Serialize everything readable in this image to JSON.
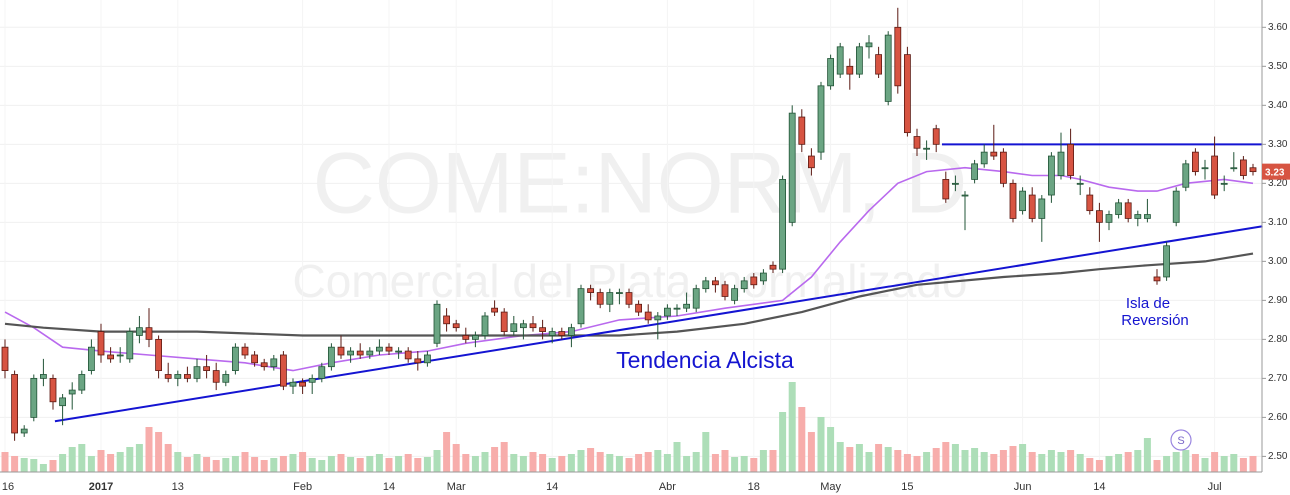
{
  "chart_data": {
    "type": "candlestick",
    "watermark": [
      "COME:NORM, D",
      "Comercial del Plata, normalizado"
    ],
    "annotations": [
      "Tendencia Alcista",
      "Isla de",
      "Reversión"
    ],
    "event_marker": "S",
    "up_color": "#6ba583",
    "down_color": "#d75442",
    "categories": [
      "16",
      null,
      null,
      null,
      null,
      null,
      null,
      null,
      null,
      null,
      "2017",
      null,
      null,
      null,
      null,
      null,
      null,
      null,
      "13",
      null,
      null,
      null,
      null,
      null,
      null,
      null,
      null,
      null,
      null,
      null,
      null,
      "Feb",
      null,
      null,
      null,
      null,
      null,
      null,
      null,
      null,
      "14",
      null,
      null,
      null,
      null,
      null,
      null,
      "Mar",
      null,
      null,
      null,
      null,
      null,
      null,
      null,
      null,
      null,
      "14",
      null,
      null,
      null,
      null,
      null,
      null,
      null,
      null,
      null,
      null,
      null,
      "Abr",
      null,
      null,
      null,
      null,
      null,
      null,
      null,
      null,
      "18",
      null,
      null,
      null,
      null,
      null,
      null,
      null,
      "May",
      null,
      null,
      null,
      null,
      null,
      null,
      null,
      "15",
      null,
      null,
      null,
      null,
      null,
      null,
      null,
      null,
      null,
      null,
      null,
      "Jun",
      null,
      null,
      null,
      null,
      null,
      null,
      null,
      "14",
      null,
      null,
      null,
      null,
      null,
      null,
      null,
      null,
      null,
      null,
      null,
      "Jul",
      null,
      null,
      null,
      null
    ],
    "candles": [
      [
        2.78,
        2.8,
        2.7,
        2.72
      ],
      [
        2.71,
        2.72,
        2.54,
        2.56
      ],
      [
        2.56,
        2.58,
        2.55,
        2.57
      ],
      [
        2.6,
        2.71,
        2.59,
        2.7
      ],
      [
        2.7,
        2.75,
        2.68,
        2.71
      ],
      [
        2.7,
        2.71,
        2.62,
        2.64
      ],
      [
        2.63,
        2.66,
        2.58,
        2.65
      ],
      [
        2.66,
        2.69,
        2.62,
        2.67
      ],
      [
        2.67,
        2.72,
        2.66,
        2.71
      ],
      [
        2.72,
        2.8,
        2.71,
        2.78
      ],
      [
        2.82,
        2.84,
        2.74,
        2.76
      ],
      [
        2.76,
        2.78,
        2.74,
        2.75
      ],
      [
        2.76,
        2.78,
        2.74,
        2.76
      ],
      [
        2.75,
        2.83,
        2.74,
        2.82
      ],
      [
        2.81,
        2.86,
        2.79,
        2.83
      ],
      [
        2.83,
        2.88,
        2.78,
        2.8
      ],
      [
        2.8,
        2.81,
        2.7,
        2.72
      ],
      [
        2.71,
        2.74,
        2.69,
        2.7
      ],
      [
        2.7,
        2.72,
        2.68,
        2.71
      ],
      [
        2.71,
        2.73,
        2.69,
        2.7
      ],
      [
        2.7,
        2.75,
        2.69,
        2.73
      ],
      [
        2.73,
        2.76,
        2.7,
        2.72
      ],
      [
        2.72,
        2.74,
        2.67,
        2.69
      ],
      [
        2.69,
        2.72,
        2.68,
        2.71
      ],
      [
        2.72,
        2.79,
        2.71,
        2.78
      ],
      [
        2.78,
        2.79,
        2.75,
        2.76
      ],
      [
        2.76,
        2.77,
        2.73,
        2.74
      ],
      [
        2.74,
        2.75,
        2.72,
        2.73
      ],
      [
        2.73,
        2.76,
        2.72,
        2.75
      ],
      [
        2.76,
        2.77,
        2.67,
        2.68
      ],
      [
        2.68,
        2.7,
        2.66,
        2.69
      ],
      [
        2.69,
        2.7,
        2.66,
        2.68
      ],
      [
        2.69,
        2.71,
        2.66,
        2.7
      ],
      [
        2.7,
        2.74,
        2.69,
        2.73
      ],
      [
        2.73,
        2.79,
        2.72,
        2.78
      ],
      [
        2.78,
        2.81,
        2.75,
        2.76
      ],
      [
        2.76,
        2.78,
        2.74,
        2.77
      ],
      [
        2.77,
        2.79,
        2.75,
        2.76
      ],
      [
        2.76,
        2.78,
        2.75,
        2.77
      ],
      [
        2.77,
        2.8,
        2.76,
        2.78
      ],
      [
        2.78,
        2.79,
        2.76,
        2.77
      ],
      [
        2.77,
        2.78,
        2.75,
        2.77
      ],
      [
        2.77,
        2.78,
        2.74,
        2.75
      ],
      [
        2.75,
        2.77,
        2.72,
        2.74
      ],
      [
        2.74,
        2.77,
        2.73,
        2.76
      ],
      [
        2.79,
        2.9,
        2.78,
        2.89
      ],
      [
        2.86,
        2.88,
        2.82,
        2.84
      ],
      [
        2.84,
        2.85,
        2.82,
        2.83
      ],
      [
        2.81,
        2.83,
        2.79,
        2.8
      ],
      [
        2.8,
        2.82,
        2.78,
        2.81
      ],
      [
        2.81,
        2.87,
        2.8,
        2.86
      ],
      [
        2.88,
        2.9,
        2.86,
        2.87
      ],
      [
        2.87,
        2.88,
        2.81,
        2.82
      ],
      [
        2.82,
        2.86,
        2.81,
        2.84
      ],
      [
        2.83,
        2.85,
        2.8,
        2.84
      ],
      [
        2.84,
        2.86,
        2.82,
        2.83
      ],
      [
        2.83,
        2.85,
        2.8,
        2.82
      ],
      [
        2.81,
        2.83,
        2.79,
        2.82
      ],
      [
        2.82,
        2.83,
        2.8,
        2.81
      ],
      [
        2.81,
        2.84,
        2.78,
        2.83
      ],
      [
        2.84,
        2.94,
        2.83,
        2.93
      ],
      [
        2.93,
        2.94,
        2.9,
        2.92
      ],
      [
        2.92,
        2.93,
        2.88,
        2.89
      ],
      [
        2.89,
        2.93,
        2.87,
        2.92
      ],
      [
        2.92,
        2.93,
        2.89,
        2.92
      ],
      [
        2.92,
        2.93,
        2.88,
        2.89
      ],
      [
        2.89,
        2.9,
        2.86,
        2.87
      ],
      [
        2.87,
        2.89,
        2.84,
        2.85
      ],
      [
        2.85,
        2.87,
        2.8,
        2.86
      ],
      [
        2.86,
        2.89,
        2.85,
        2.88
      ],
      [
        2.88,
        2.89,
        2.86,
        2.88
      ],
      [
        2.88,
        2.92,
        2.87,
        2.89
      ],
      [
        2.88,
        2.94,
        2.87,
        2.93
      ],
      [
        2.93,
        2.96,
        2.92,
        2.95
      ],
      [
        2.95,
        2.96,
        2.92,
        2.94
      ],
      [
        2.94,
        2.95,
        2.9,
        2.91
      ],
      [
        2.9,
        2.94,
        2.89,
        2.93
      ],
      [
        2.93,
        2.96,
        2.92,
        2.95
      ],
      [
        2.96,
        2.97,
        2.93,
        2.94
      ],
      [
        2.95,
        2.98,
        2.94,
        2.97
      ],
      [
        2.99,
        3.0,
        2.97,
        2.98
      ],
      [
        2.98,
        3.22,
        2.97,
        3.21
      ],
      [
        3.1,
        3.4,
        3.09,
        3.38
      ],
      [
        3.37,
        3.39,
        3.28,
        3.3
      ],
      [
        3.27,
        3.29,
        3.22,
        3.24
      ],
      [
        3.28,
        3.46,
        3.26,
        3.45
      ],
      [
        3.45,
        3.53,
        3.44,
        3.52
      ],
      [
        3.48,
        3.56,
        3.47,
        3.55
      ],
      [
        3.5,
        3.52,
        3.44,
        3.48
      ],
      [
        3.48,
        3.56,
        3.47,
        3.55
      ],
      [
        3.55,
        3.58,
        3.52,
        3.56
      ],
      [
        3.53,
        3.55,
        3.47,
        3.48
      ],
      [
        3.41,
        3.59,
        3.4,
        3.58
      ],
      [
        3.6,
        3.65,
        3.43,
        3.45
      ],
      [
        3.53,
        3.55,
        3.32,
        3.33
      ],
      [
        3.32,
        3.34,
        3.27,
        3.29
      ],
      [
        3.29,
        3.31,
        3.26,
        3.29
      ],
      [
        3.34,
        3.35,
        3.28,
        3.3
      ],
      [
        3.21,
        3.23,
        3.15,
        3.16
      ],
      [
        3.2,
        3.22,
        3.18,
        3.2
      ],
      [
        3.17,
        3.18,
        3.08,
        3.17
      ],
      [
        3.21,
        3.26,
        3.2,
        3.25
      ],
      [
        3.25,
        3.3,
        3.24,
        3.28
      ],
      [
        3.28,
        3.35,
        3.26,
        3.27
      ],
      [
        3.28,
        3.29,
        3.19,
        3.2
      ],
      [
        3.2,
        3.21,
        3.1,
        3.11
      ],
      [
        3.13,
        3.19,
        3.12,
        3.18
      ],
      [
        3.17,
        3.19,
        3.1,
        3.11
      ],
      [
        3.11,
        3.17,
        3.05,
        3.16
      ],
      [
        3.17,
        3.28,
        3.15,
        3.27
      ],
      [
        3.22,
        3.33,
        3.21,
        3.28
      ],
      [
        3.3,
        3.34,
        3.21,
        3.22
      ],
      [
        3.2,
        3.22,
        3.17,
        3.2
      ],
      [
        3.17,
        3.19,
        3.12,
        3.13
      ],
      [
        3.13,
        3.15,
        3.05,
        3.1
      ],
      [
        3.1,
        3.13,
        3.08,
        3.12
      ],
      [
        3.12,
        3.16,
        3.11,
        3.15
      ],
      [
        3.15,
        3.16,
        3.1,
        3.11
      ],
      [
        3.11,
        3.13,
        3.09,
        3.12
      ],
      [
        3.11,
        3.16,
        3.1,
        3.12
      ],
      [
        2.96,
        2.98,
        2.94,
        2.95
      ],
      [
        2.96,
        3.05,
        2.95,
        3.04
      ],
      [
        3.1,
        3.19,
        3.09,
        3.18
      ],
      [
        3.19,
        3.26,
        3.18,
        3.25
      ],
      [
        3.28,
        3.29,
        3.22,
        3.23
      ],
      [
        3.24,
        3.26,
        3.21,
        3.24
      ],
      [
        3.27,
        3.32,
        3.16,
        3.17
      ],
      [
        3.2,
        3.22,
        3.18,
        3.2
      ],
      [
        3.24,
        3.28,
        3.23,
        3.24
      ],
      [
        3.26,
        3.27,
        3.21,
        3.22
      ],
      [
        3.24,
        3.25,
        3.22,
        3.23
      ]
    ],
    "volume": [
      20,
      16,
      14,
      13,
      8,
      12,
      18,
      25,
      28,
      16,
      22,
      18,
      20,
      25,
      28,
      45,
      40,
      28,
      20,
      15,
      18,
      15,
      12,
      14,
      16,
      20,
      15,
      12,
      14,
      16,
      18,
      20,
      14,
      12,
      16,
      18,
      15,
      14,
      16,
      18,
      14,
      16,
      18,
      14,
      15,
      22,
      40,
      28,
      18,
      16,
      20,
      25,
      30,
      18,
      16,
      20,
      18,
      14,
      16,
      18,
      22,
      24,
      20,
      18,
      16,
      14,
      18,
      20,
      22,
      18,
      30,
      16,
      20,
      40,
      18,
      22,
      15,
      16,
      14,
      22,
      22,
      60,
      90,
      65,
      40,
      55,
      45,
      30,
      25,
      28,
      20,
      28,
      25,
      22,
      18,
      16,
      20,
      24,
      30,
      28,
      22,
      24,
      20,
      18,
      22,
      26,
      28,
      20,
      18,
      22,
      20,
      22,
      18,
      14,
      12,
      16,
      18,
      20,
      22,
      34,
      12,
      16,
      20,
      22,
      18,
      14,
      20,
      16,
      18,
      14,
      16
    ],
    "moving_averages": [
      {
        "color": "#b969ee",
        "x": [
          0,
          3,
          6,
          10,
          15,
          20,
          25,
          30,
          34,
          39,
          44,
          48,
          54,
          59,
          64,
          70,
          75,
          81,
          84,
          87,
          90,
          93,
          96,
          100,
          104,
          107,
          110,
          112,
          115,
          118,
          120,
          123,
          127,
          130
        ],
        "values": [
          2.87,
          2.83,
          2.78,
          2.77,
          2.76,
          2.75,
          2.74,
          2.72,
          2.74,
          2.76,
          2.77,
          2.79,
          2.81,
          2.82,
          2.85,
          2.86,
          2.88,
          2.9,
          2.96,
          3.05,
          3.13,
          3.2,
          3.23,
          3.24,
          3.23,
          3.22,
          3.22,
          3.21,
          3.19,
          3.18,
          3.18,
          3.2,
          3.21,
          3.2
        ]
      },
      {
        "color": "#555555",
        "x": [
          0,
          4,
          10,
          20,
          31,
          41,
          52,
          58,
          64,
          70,
          77,
          83,
          89,
          95,
          104,
          110,
          114,
          119,
          125,
          130
        ],
        "values": [
          2.84,
          2.83,
          2.82,
          2.82,
          2.81,
          2.81,
          2.81,
          2.81,
          2.81,
          2.82,
          2.84,
          2.87,
          2.91,
          2.94,
          2.96,
          2.97,
          2.98,
          2.99,
          3.0,
          3.02
        ]
      }
    ],
    "trendlines": [
      {
        "color": "#1414d2",
        "x": [
          5.2,
          131
        ],
        "values": [
          2.59,
          3.09
        ]
      },
      {
        "color": "#1414d2",
        "x": [
          97.6,
          131
        ],
        "values": [
          3.3,
          3.3
        ]
      }
    ],
    "ylim": [
      2.46,
      3.67
    ],
    "yticks": [
      {
        "value": 2.5,
        "label": "2.50"
      },
      {
        "value": 2.6,
        "label": "2.60"
      },
      {
        "value": 2.7,
        "label": "2.70"
      },
      {
        "value": 2.8,
        "label": "2.80"
      },
      {
        "value": 2.9,
        "label": "2.90"
      },
      {
        "value": 3.0,
        "label": "3.00"
      },
      {
        "value": 3.1,
        "label": "3.10"
      },
      {
        "value": 3.2,
        "label": "3.20"
      },
      {
        "value": 3.3,
        "label": "3.30"
      },
      {
        "value": 3.4,
        "label": "3.40"
      },
      {
        "value": 3.5,
        "label": "3.50"
      },
      {
        "value": 3.6,
        "label": "3.60"
      }
    ],
    "grid": true
  }
}
